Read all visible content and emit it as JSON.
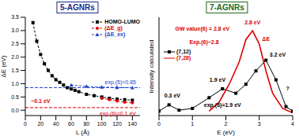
{
  "chart_data": [
    {
      "type": "line",
      "title": "5-AGNRs",
      "x_label": "L (Å)",
      "y_label": "ΔE (eV)",
      "xlim": [
        0,
        150
      ],
      "xticks": [
        0,
        20,
        40,
        60,
        80,
        100,
        120,
        140
      ],
      "ylim": [
        -0.2,
        3.5
      ],
      "yticks": [
        {
          "value": 0,
          "label": "0.0"
        },
        0.5,
        {
          "value": 1,
          "label": "1.0"
        },
        1.5,
        {
          "value": 2,
          "label": "2.0"
        },
        2.5,
        {
          "value": 3,
          "label": "3.0"
        },
        3.5
      ],
      "legend": "upper right",
      "series": [
        {
          "name": "HOMO-LUMO",
          "color": "#000000",
          "marker": "square",
          "line_style": "dashed",
          "x": [
            10,
            15,
            20,
            25,
            30,
            35,
            40,
            45,
            50,
            55,
            60,
            65,
            70,
            80,
            90,
            100,
            110,
            120,
            130,
            140
          ],
          "values": [
            3.3,
            2.6,
            2.1,
            1.75,
            1.5,
            1.3,
            1.15,
            1.05,
            0.95,
            0.85,
            0.8,
            0.75,
            0.7,
            0.6,
            0.55,
            0.5,
            0.45,
            0.42,
            0.4,
            0.38
          ]
        },
        {
          "name": "(ΔE_g)",
          "color": "#dd0000",
          "marker": "circle",
          "line_style": "dashed",
          "x": [
            100,
            110,
            120,
            130,
            140
          ],
          "values": [
            0.45,
            0.4,
            0.35,
            0.3,
            0.28
          ]
        },
        {
          "name": "(ΔE_ex)",
          "color": "#2244cc",
          "marker": "triangle",
          "line_style": "dashed",
          "x": [
            60,
            80,
            100,
            120,
            140
          ],
          "values": [
            0.95,
            0.9,
            0.87,
            0.86,
            0.85
          ]
        }
      ],
      "hlines": [
        {
          "value": 0.85,
          "label": "exp.(5)=0.85",
          "color": "#2244cc"
        },
        {
          "value": 0.1,
          "label": "exp.(6)=0.1 eV",
          "color": "#dd0000"
        }
      ],
      "annotations": [
        {
          "text": "~0.1 eV",
          "x": 20,
          "y": 0.35,
          "color": "#dd0000"
        }
      ]
    },
    {
      "type": "line",
      "title": "7-AGNRs",
      "x_label": "E (eV)",
      "y_label": "Intensity calculated",
      "xlim": [
        0,
        4
      ],
      "xticks": [
        0,
        1,
        2,
        3,
        4
      ],
      "ylim": [
        0,
        1.1
      ],
      "tick_labels": "x",
      "legend": "left",
      "series": [
        {
          "name": "(7,12)",
          "color": "#000000",
          "marker": "square",
          "line_style": "solid",
          "x": [
            0,
            0.3,
            0.6,
            1.0,
            1.5,
            1.9,
            2.3,
            2.6,
            2.9,
            3.2,
            3.5,
            3.8,
            4.0
          ],
          "values": [
            0.05,
            0.12,
            0.06,
            0.08,
            0.2,
            0.3,
            0.25,
            0.35,
            0.5,
            0.62,
            0.4,
            0.1,
            0.05
          ]
        },
        {
          "name": "(7,28)",
          "color": "#dd0000",
          "marker": "none",
          "line_style": "solid",
          "x": [
            1.5,
            1.8,
            2.1,
            2.4,
            2.6,
            2.8,
            3.0,
            3.2,
            3.4,
            3.7,
            4.0
          ],
          "values": [
            0.05,
            0.15,
            0.35,
            0.6,
            0.85,
            0.95,
            0.8,
            0.5,
            0.25,
            0.08,
            0.03
          ]
        }
      ],
      "annotations": [
        {
          "text": "GW value(6) = 2.8 eV",
          "x": 1.3,
          "y": 0.97,
          "color": "#dd0000"
        },
        {
          "text": "Exp.(6)~2.8",
          "x": 1.35,
          "y": 0.82,
          "color": "#dd0000"
        },
        {
          "text": "2.8 eV",
          "x": 2.8,
          "y": 1.04,
          "color": "#dd0000"
        },
        {
          "text": "ΔE",
          "x": 3.2,
          "y": 0.86,
          "color": "#dd0000"
        },
        {
          "text": "3.2 eV",
          "x": 3.55,
          "y": 0.68,
          "color": "#000000"
        },
        {
          "text": "1.9 eV",
          "x": 1.75,
          "y": 0.4,
          "color": "#000000"
        },
        {
          "text": "0.3 eV",
          "x": 0.4,
          "y": 0.22,
          "color": "#000000"
        },
        {
          "text": "exp.(6)=1.9 eV",
          "x": 1.9,
          "y": 0.12,
          "color": "#000000"
        },
        {
          "text": "?",
          "x": 3.85,
          "y": 0.3,
          "color": "#000000"
        }
      ]
    }
  ]
}
